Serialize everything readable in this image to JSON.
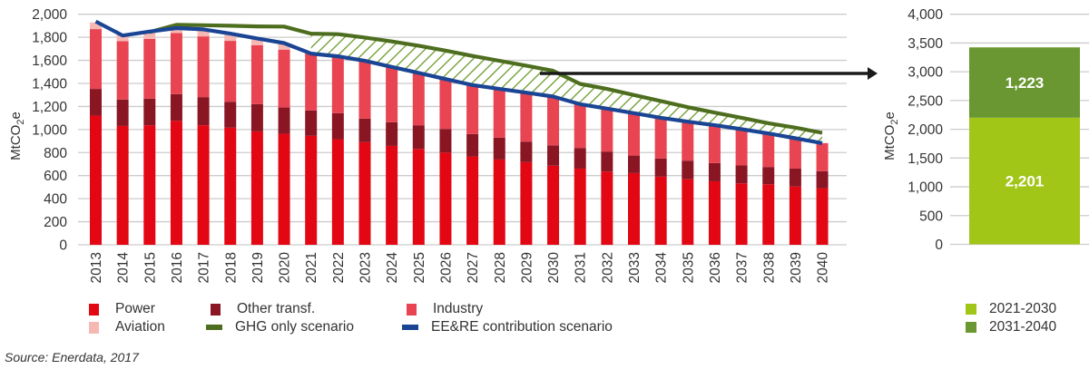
{
  "chart_data": [
    {
      "type": "bar",
      "subtype": "stacked-bar-with-lines",
      "ylabel": "MtCO2e",
      "ylim": [
        0,
        2000
      ],
      "yticks": [
        0,
        200,
        400,
        600,
        800,
        1000,
        1200,
        1400,
        1600,
        1800,
        2000
      ],
      "ytick_labels": [
        "0",
        "200",
        "400",
        "600",
        "800",
        "1,000",
        "1,200",
        "1,400",
        "1,600",
        "1,800",
        "2,000"
      ],
      "grid": true,
      "categories": [
        "2013",
        "2014",
        "2015",
        "2016",
        "2017",
        "2018",
        "2019",
        "2020",
        "2021",
        "2022",
        "2023",
        "2024",
        "2025",
        "2026",
        "2027",
        "2028",
        "2029",
        "2030",
        "2031",
        "2032",
        "2033",
        "2034",
        "2035",
        "2036",
        "2037",
        "2038",
        "2039",
        "2040"
      ],
      "series": [
        {
          "name": "Power",
          "kind": "bar",
          "color": "#e30613",
          "values": [
            1121,
            1031,
            1037,
            1076,
            1037,
            1016,
            984,
            963,
            945,
            916,
            890,
            858,
            832,
            800,
            766,
            740,
            717,
            686,
            661,
            635,
            622,
            591,
            569,
            551,
            533,
            525,
            506,
            491
          ]
        },
        {
          "name": "Other transf.",
          "kind": "bar",
          "color": "#8a1523",
          "values": [
            231,
            229,
            231,
            231,
            244,
            225,
            236,
            228,
            220,
            226,
            204,
            205,
            205,
            205,
            195,
            189,
            178,
            177,
            179,
            174,
            152,
            157,
            161,
            158,
            155,
            150,
            155,
            147
          ]
        },
        {
          "name": "Industry",
          "kind": "bar",
          "color": "#e84452",
          "values": [
            519,
            506,
            519,
            530,
            527,
            528,
            512,
            502,
            494,
            493,
            502,
            480,
            454,
            433,
            425,
            423,
            425,
            423,
            380,
            372,
            368,
            354,
            338,
            328,
            315,
            291,
            263,
            244
          ]
        },
        {
          "name": "Aviation",
          "kind": "bar",
          "color": "#f7b8b4",
          "values": [
            58,
            66,
            63,
            58,
            61,
            63,
            58,
            57,
            0,
            0,
            0,
            0,
            0,
            0,
            0,
            0,
            0,
            0,
            0,
            0,
            0,
            0,
            0,
            0,
            0,
            0,
            0,
            0
          ]
        },
        {
          "name": "GHG only scenario",
          "kind": "line",
          "color": "#4e6e1f",
          "values": [
            null,
            null,
            1845,
            1908,
            1905,
            1900,
            1895,
            1893,
            1832,
            1827,
            1798,
            1764,
            1727,
            1685,
            1638,
            1596,
            1554,
            1509,
            1396,
            1352,
            1299,
            1247,
            1194,
            1147,
            1102,
            1055,
            1016,
            971
          ]
        },
        {
          "name": "EE&RE contribution scenario",
          "kind": "line",
          "color": "#1a4494",
          "values": [
            1937,
            1815,
            1850,
            1880,
            1869,
            1832,
            1790,
            1750,
            1659,
            1635,
            1596,
            1543,
            1491,
            1438,
            1386,
            1352,
            1320,
            1286,
            1220,
            1181,
            1142,
            1102,
            1068,
            1037,
            1003,
            966,
            924,
            882
          ]
        }
      ],
      "hatched_gap": {
        "between": [
          "GHG only scenario",
          "EE&RE contribution scenario"
        ],
        "from": "2021",
        "to": "2040",
        "color": "#6b9a2a"
      },
      "annotation": "arrow pointing from cumulative gap to right-hand panel",
      "legend_position": "bottom"
    },
    {
      "type": "bar",
      "subtype": "stacked-single-bar",
      "ylabel": "MtCO2e",
      "ylim": [
        0,
        4000
      ],
      "yticks": [
        0,
        500,
        1000,
        1500,
        2000,
        2500,
        3000,
        3500,
        4000
      ],
      "ytick_labels": [
        "0",
        "500",
        "1,000",
        "1,500",
        "2,000",
        "2,500",
        "3,000",
        "3,500",
        "4,000"
      ],
      "grid": true,
      "series": [
        {
          "name": "2021-2030",
          "color": "#a2c617",
          "value": 2201,
          "label": "2,201"
        },
        {
          "name": "2031-2040",
          "color": "#6b9732",
          "value": 1223,
          "label": "1,223"
        }
      ],
      "legend_position": "bottom-right"
    }
  ],
  "legend_left": [
    {
      "label": "Power",
      "color": "#e30613",
      "kind": "box"
    },
    {
      "label": "Other transf.",
      "color": "#8a1523",
      "kind": "box"
    },
    {
      "label": "Industry",
      "color": "#e84452",
      "kind": "box"
    },
    {
      "label": "Aviation",
      "color": "#f7b8b4",
      "kind": "box"
    },
    {
      "label": "GHG only scenario",
      "color": "#4e6e1f",
      "kind": "line"
    },
    {
      "label": "EE&RE contribution scenario",
      "color": "#1a4494",
      "kind": "line"
    }
  ],
  "legend_right": [
    {
      "label": "2021-2030",
      "color": "#a2c617"
    },
    {
      "label": "2031-2040",
      "color": "#6b9732"
    }
  ],
  "ylabel_main": "MtCO",
  "ylabel_sub": "2",
  "ylabel_tail": "e",
  "source": "Source: Enerdata, 2017"
}
